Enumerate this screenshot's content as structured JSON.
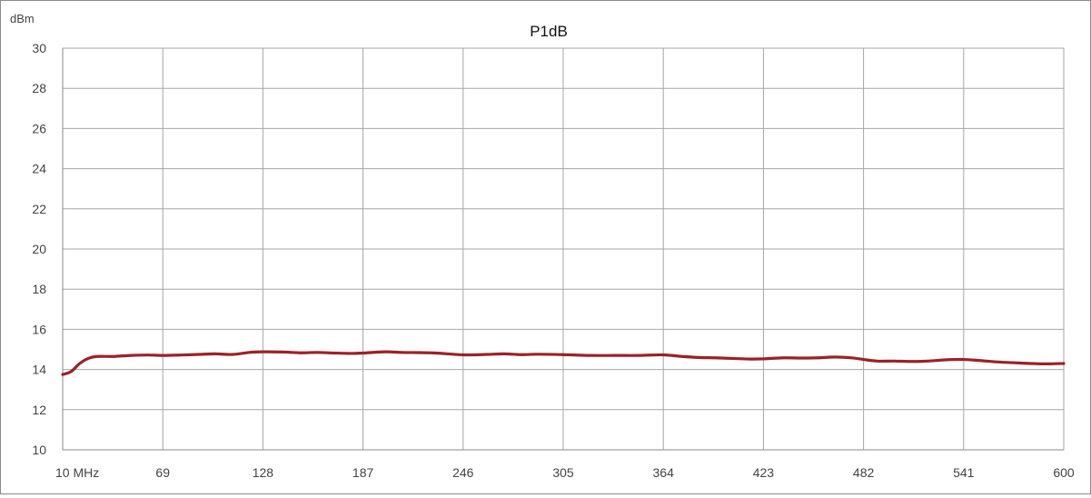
{
  "chart_data": {
    "type": "line",
    "title": "P1dB",
    "ylabel": "dBm",
    "xlabel": "",
    "x_tick_labels": [
      "10  MHz",
      "69",
      "128",
      "187",
      "246",
      "305",
      "364",
      "423",
      "482",
      "541",
      "600"
    ],
    "x_ticks": [
      10,
      69,
      128,
      187,
      246,
      305,
      364,
      423,
      482,
      541,
      600
    ],
    "xlim": [
      10,
      600
    ],
    "ylim": [
      10,
      30
    ],
    "y_ticks": [
      10,
      12,
      14,
      16,
      18,
      20,
      22,
      24,
      26,
      28,
      30
    ],
    "grid": true,
    "legend": "none",
    "series": [
      {
        "color": "#9b2226",
        "x": [
          10,
          15,
          20,
          25,
          30,
          40,
          50,
          60,
          69,
          80,
          90,
          100,
          110,
          120,
          128,
          140,
          150,
          160,
          170,
          180,
          187,
          200,
          210,
          220,
          230,
          246,
          260,
          270,
          280,
          290,
          305,
          320,
          335,
          350,
          364,
          375,
          385,
          395,
          405,
          415,
          423,
          435,
          445,
          455,
          465,
          475,
          482,
          490,
          500,
          510,
          520,
          530,
          541,
          550,
          560,
          570,
          580,
          590,
          600
        ],
        "y": [
          13.75,
          13.9,
          14.3,
          14.55,
          14.65,
          14.65,
          14.7,
          14.72,
          14.7,
          14.72,
          14.75,
          14.78,
          14.75,
          14.85,
          14.88,
          14.87,
          14.83,
          14.85,
          14.82,
          14.8,
          14.82,
          14.88,
          14.85,
          14.84,
          14.82,
          14.73,
          14.75,
          14.78,
          14.74,
          14.76,
          14.74,
          14.7,
          14.7,
          14.7,
          14.73,
          14.65,
          14.6,
          14.58,
          14.55,
          14.52,
          14.53,
          14.58,
          14.57,
          14.58,
          14.62,
          14.58,
          14.5,
          14.42,
          14.42,
          14.4,
          14.42,
          14.48,
          14.5,
          14.45,
          14.38,
          14.34,
          14.3,
          14.28,
          14.3
        ]
      }
    ]
  }
}
